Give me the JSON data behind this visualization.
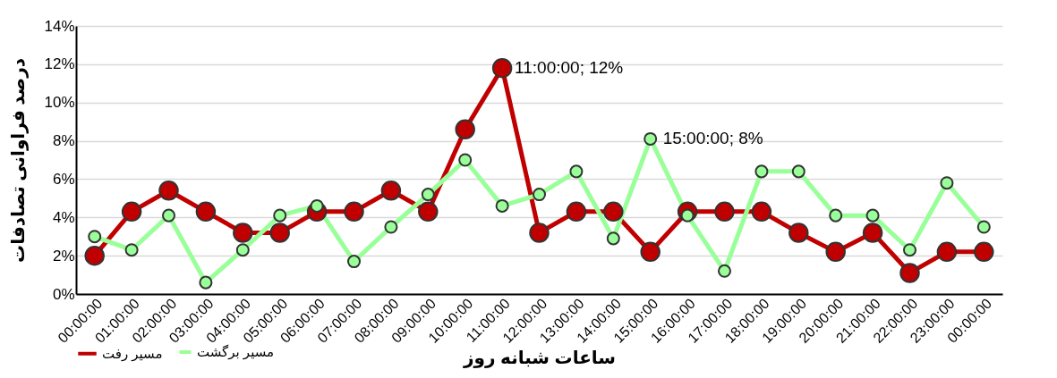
{
  "chart_data": {
    "type": "line",
    "xlabel": "ساعات شبانه روز",
    "ylabel": "درصد فراوانی تصادفات",
    "categories": [
      "00:00:00",
      "01:00:00",
      "02:00:00",
      "03:00:00",
      "04:00:00",
      "05:00:00",
      "06:00:00",
      "07:00:00",
      "08:00:00",
      "09:00:00",
      "10:00:00",
      "11:00:00",
      "12:00:00",
      "13:00:00",
      "14:00:00",
      "15:00:00",
      "16:00:00",
      "17:00:00",
      "18:00:00",
      "19:00:00",
      "20:00:00",
      "21:00:00",
      "22:00:00",
      "23:00:00",
      "00:00:00"
    ],
    "series": [
      {
        "name": "مسیر رفت",
        "color": "#c00000",
        "values": [
          2.0,
          4.3,
          5.4,
          4.3,
          3.2,
          3.2,
          4.3,
          4.3,
          5.4,
          4.3,
          8.6,
          11.8,
          3.2,
          4.3,
          4.3,
          2.2,
          4.3,
          4.3,
          4.3,
          3.2,
          2.2,
          3.2,
          1.1,
          2.2,
          2.2
        ],
        "value_labels": [
          null,
          null,
          null,
          null,
          null,
          null,
          null,
          null,
          null,
          null,
          null,
          "11:00:00; 12%",
          null,
          null,
          null,
          null,
          null,
          null,
          null,
          null,
          null,
          null,
          null,
          null,
          null
        ]
      },
      {
        "name": "مسیر برگشت",
        "color": "#99ff99",
        "values": [
          3.0,
          2.3,
          4.1,
          0.6,
          2.3,
          4.1,
          4.6,
          1.7,
          3.5,
          5.2,
          7.0,
          4.6,
          5.2,
          6.4,
          2.9,
          8.1,
          4.1,
          1.2,
          6.4,
          6.4,
          4.1,
          4.1,
          2.3,
          5.8,
          3.5
        ],
        "value_labels": [
          null,
          null,
          null,
          null,
          null,
          null,
          null,
          null,
          null,
          null,
          null,
          null,
          null,
          null,
          null,
          "15:00:00; 8%",
          null,
          null,
          null,
          null,
          null,
          null,
          null,
          null,
          null
        ]
      }
    ],
    "ylim": [
      0,
      14
    ],
    "yticks": [
      {
        "value": 0,
        "label": "0%"
      },
      {
        "value": 2,
        "label": "2%"
      },
      {
        "value": 4,
        "label": "4%"
      },
      {
        "value": 6,
        "label": "6%"
      },
      {
        "value": 8,
        "label": "8%"
      },
      {
        "value": 10,
        "label": "10%"
      },
      {
        "value": 12,
        "label": "12%"
      },
      {
        "value": 14,
        "label": "14%"
      }
    ],
    "grid": "y",
    "legend": "bottom",
    "marker": "circle",
    "line_style": "solid"
  }
}
